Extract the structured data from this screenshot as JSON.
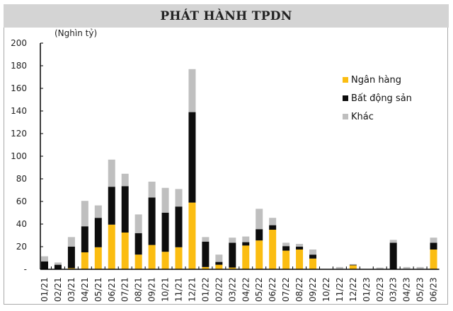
{
  "header": {
    "title": "PHÁT HÀNH TPDN"
  },
  "chart_data": {
    "type": "bar",
    "stacked": true,
    "title": "PHÁT HÀNH TPDN",
    "ylabel": "(Nghìn tỷ)",
    "xlabel": "",
    "ylim": [
      0,
      200
    ],
    "yticks": [
      "-",
      "20",
      "40",
      "60",
      "80",
      "100",
      "120",
      "140",
      "160",
      "180",
      "200"
    ],
    "legend_position": "upper right",
    "grid": false,
    "categories": [
      "01/21",
      "02/21",
      "03/21",
      "04/21",
      "05/21",
      "06/21",
      "07/21",
      "08/21",
      "09/21",
      "10/21",
      "11/21",
      "12/21",
      "01/22",
      "02/22",
      "03/22",
      "04/22",
      "05/22",
      "06/22",
      "07/22",
      "08/22",
      "09/22",
      "10/22",
      "11/22",
      "12/22",
      "01/23",
      "02/23",
      "03/23",
      "04/23",
      "05/23",
      "06/23"
    ],
    "series": [
      {
        "name": "Ngân hàng",
        "color": "#fbbd12",
        "values": [
          0,
          0,
          1,
          15,
          19.5,
          39.5,
          32.5,
          13,
          21.5,
          15.5,
          19.5,
          59,
          2,
          4,
          1.5,
          21,
          25.5,
          35,
          16.5,
          17.5,
          9.5,
          0,
          0,
          3.5,
          0,
          0,
          0,
          0,
          0,
          17.5
        ]
      },
      {
        "name": "Bất động sản",
        "color": "#0d0d0d",
        "values": [
          7,
          4,
          19,
          23,
          26,
          33.5,
          41,
          19,
          42,
          34.5,
          36,
          80,
          22.5,
          2.5,
          22,
          3,
          10,
          4,
          4,
          2.5,
          3.5,
          0,
          0,
          0.5,
          0,
          0,
          23.5,
          0,
          0,
          6
        ]
      },
      {
        "name": "Khác",
        "color": "#bfbfbf",
        "values": [
          4.5,
          2,
          8.5,
          22.5,
          11,
          24,
          11,
          16.5,
          14,
          22,
          15.5,
          38,
          4,
          6.5,
          4.5,
          5,
          18,
          6.5,
          3,
          2.5,
          4.5,
          0,
          2,
          0.5,
          0,
          1.5,
          2.5,
          2,
          2,
          4.5
        ]
      }
    ]
  }
}
